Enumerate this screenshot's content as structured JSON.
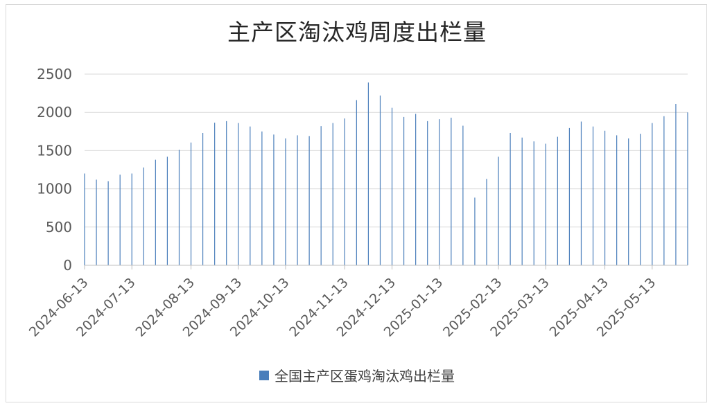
{
  "chart_data": {
    "type": "bar",
    "title": "主产区淘汰鸡周度出栏量",
    "ylim": [
      0,
      2500
    ],
    "yticks": [
      0,
      500,
      1000,
      1500,
      2000,
      2500
    ],
    "grid": true,
    "legend_position": "bottom",
    "series": [
      {
        "name": "全国主产区蛋鸡淘汰鸡出栏量",
        "color": "#4a7ebb",
        "values": [
          1200,
          1120,
          1100,
          1185,
          1200,
          1280,
          1380,
          1420,
          1510,
          1605,
          1730,
          1865,
          1885,
          1860,
          1815,
          1750,
          1710,
          1660,
          1700,
          1690,
          1820,
          1860,
          1920,
          2160,
          2390,
          2220,
          2060,
          1940,
          1980,
          1885,
          1910,
          1930,
          1825,
          885,
          1130,
          1420,
          1730,
          1670,
          1620,
          1590,
          1680,
          1795,
          1880,
          1815,
          1760,
          1700,
          1660,
          1720,
          1860,
          1950,
          2110,
          2000
        ]
      }
    ],
    "x_labels": [
      "2024-06-13",
      "2024-07-13",
      "2024-08-13",
      "2024-09-13",
      "2024-10-13",
      "2024-11-13",
      "2024-12-13",
      "2025-01-13",
      "2025-02-13",
      "2025-03-13",
      "2025-04-13",
      "2025-05-13"
    ],
    "x_label_bar_index": [
      0,
      4,
      9,
      13,
      17,
      22,
      26,
      30,
      35,
      39,
      44,
      48
    ]
  }
}
